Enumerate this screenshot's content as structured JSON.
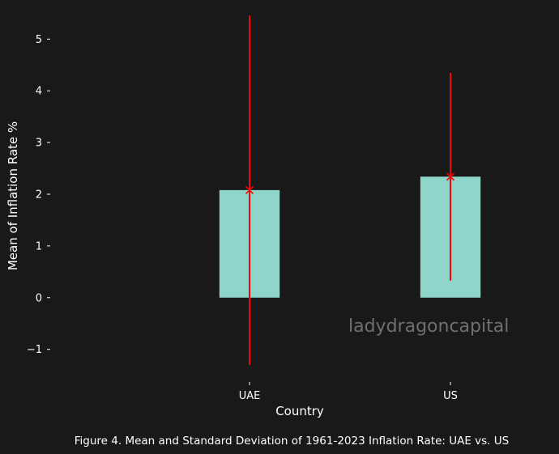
{
  "chart_data": {
    "type": "bar",
    "categories": [
      "UAE",
      "US"
    ],
    "values": [
      2.08,
      2.34
    ],
    "error_bars": {
      "std": [
        3.38,
        2.01
      ],
      "color": "#ff0000",
      "marker": "x"
    },
    "xlabel": "Country",
    "ylabel": "Mean of Inflation Rate %",
    "ylim": [
      -1.6,
      5.6
    ],
    "yticks": [
      -1,
      0,
      1,
      2,
      3,
      4,
      5
    ],
    "ytick_labels": [
      "−1",
      "0",
      "1",
      "2",
      "3",
      "4",
      "5"
    ],
    "xlim": [
      -1.0,
      1.5
    ],
    "grid": false,
    "bar_color": "#8fd5c9",
    "background": "#191919",
    "caption": "Figure 4. Mean and Standard Deviation of 1961-2023 Inflation Rate: UAE vs. US",
    "watermark": "ladydragoncapital"
  }
}
